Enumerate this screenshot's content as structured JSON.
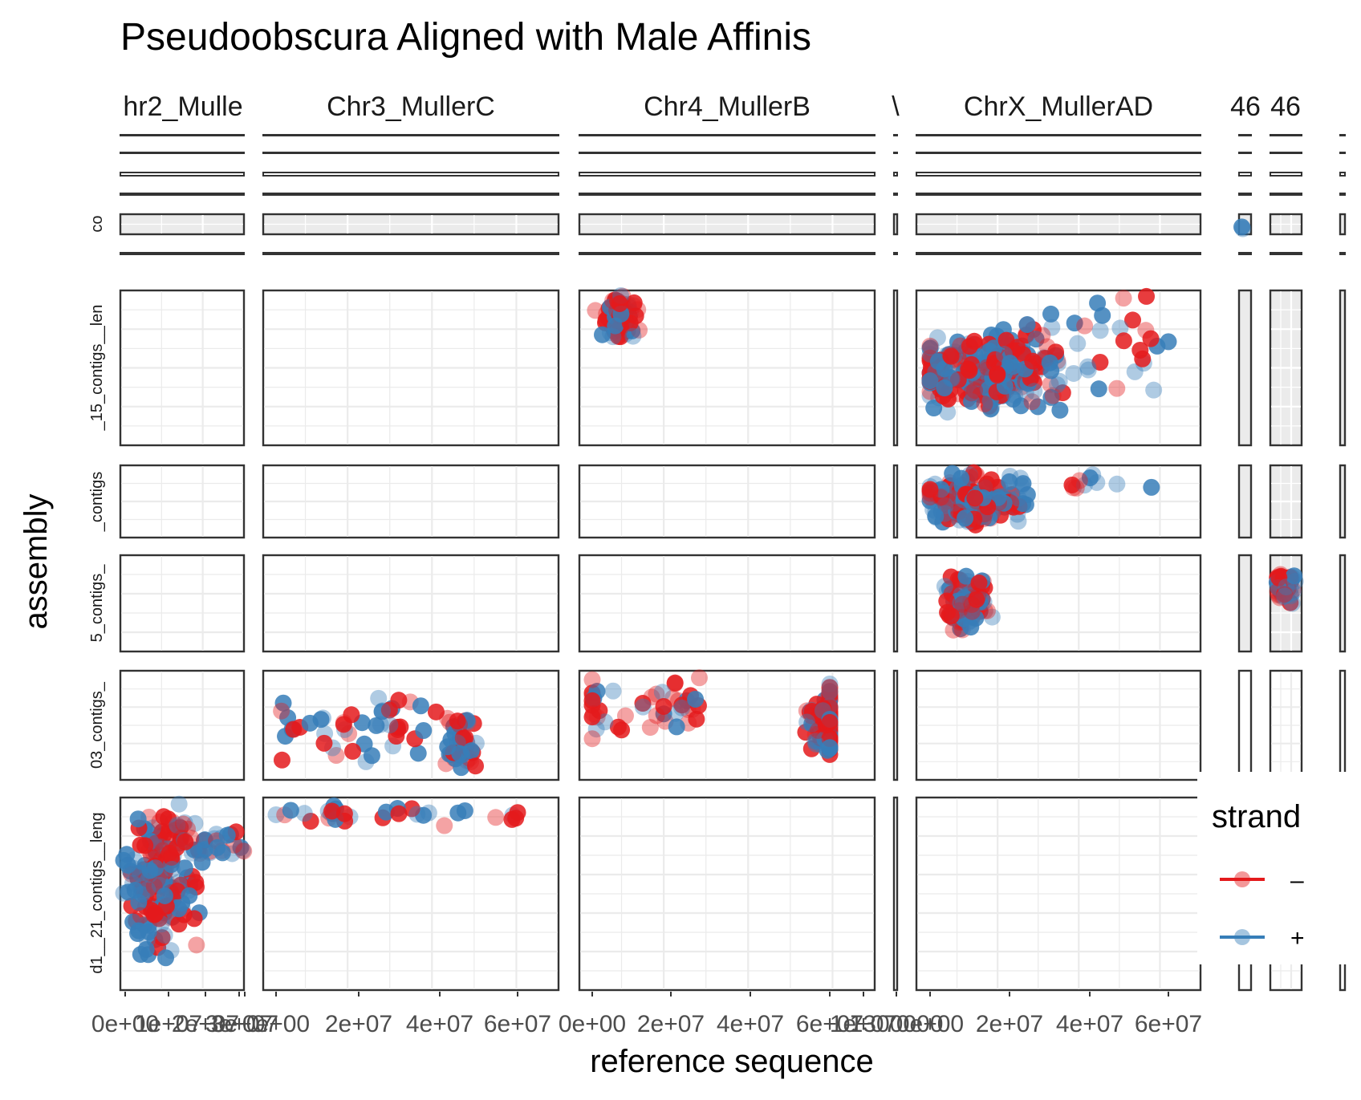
{
  "chart_data": {
    "type": "scatter",
    "title": "Pseudoobscura Aligned with Male Affinis",
    "xlabel": "reference sequence",
    "ylabel": "assembly",
    "facet_columns": [
      {
        "id": "c1",
        "label": "hr2_Mulle",
        "ticks": [
          "0e+00",
          "1e+07",
          "2e+07",
          "3e+07",
          "3e+07"
        ]
      },
      {
        "id": "c2",
        "label": "Chr3_MullerC",
        "ticks": [
          "0e+00",
          "2e+07",
          "4e+07",
          "6e+07"
        ]
      },
      {
        "id": "c3",
        "label": "Chr4_MullerB",
        "ticks": [
          "0e+00",
          "2e+07",
          "4e+07",
          "6e+07",
          "1e+07"
        ]
      },
      {
        "id": "c4",
        "label": "\\",
        "ticks": [
          "1300000"
        ]
      },
      {
        "id": "c5",
        "label": "ChrX_MullerAD",
        "ticks": [
          "0e+00",
          "2e+07",
          "4e+07",
          "6e+07"
        ]
      },
      {
        "id": "c6",
        "label": "46",
        "ticks": []
      },
      {
        "id": "c7",
        "label": "46",
        "ticks": []
      },
      {
        "id": "c8",
        "label": "",
        "ticks": []
      }
    ],
    "facet_rows": [
      {
        "id": "r1",
        "label": ""
      },
      {
        "id": "r2",
        "label": ""
      },
      {
        "id": "r3",
        "label": ""
      },
      {
        "id": "r4",
        "label": ""
      },
      {
        "id": "r5",
        "label": "co"
      },
      {
        "id": "r6",
        "label": ""
      },
      {
        "id": "r7",
        "label": "_15_contigs__len"
      },
      {
        "id": "r8",
        "label": "_contigs"
      },
      {
        "id": "r9",
        "label": "5_contigs_"
      },
      {
        "id": "r10",
        "label": "03_contigs_"
      },
      {
        "id": "r11",
        "label": "d1__21_contigs__leng"
      }
    ],
    "series": [
      {
        "name": "–",
        "strand": "minus",
        "color": "#e41a1c"
      },
      {
        "name": "+",
        "strand": "plus",
        "color": "#377eb8"
      }
    ],
    "legend": {
      "title": "strand",
      "position": "right"
    },
    "grid": true
  }
}
